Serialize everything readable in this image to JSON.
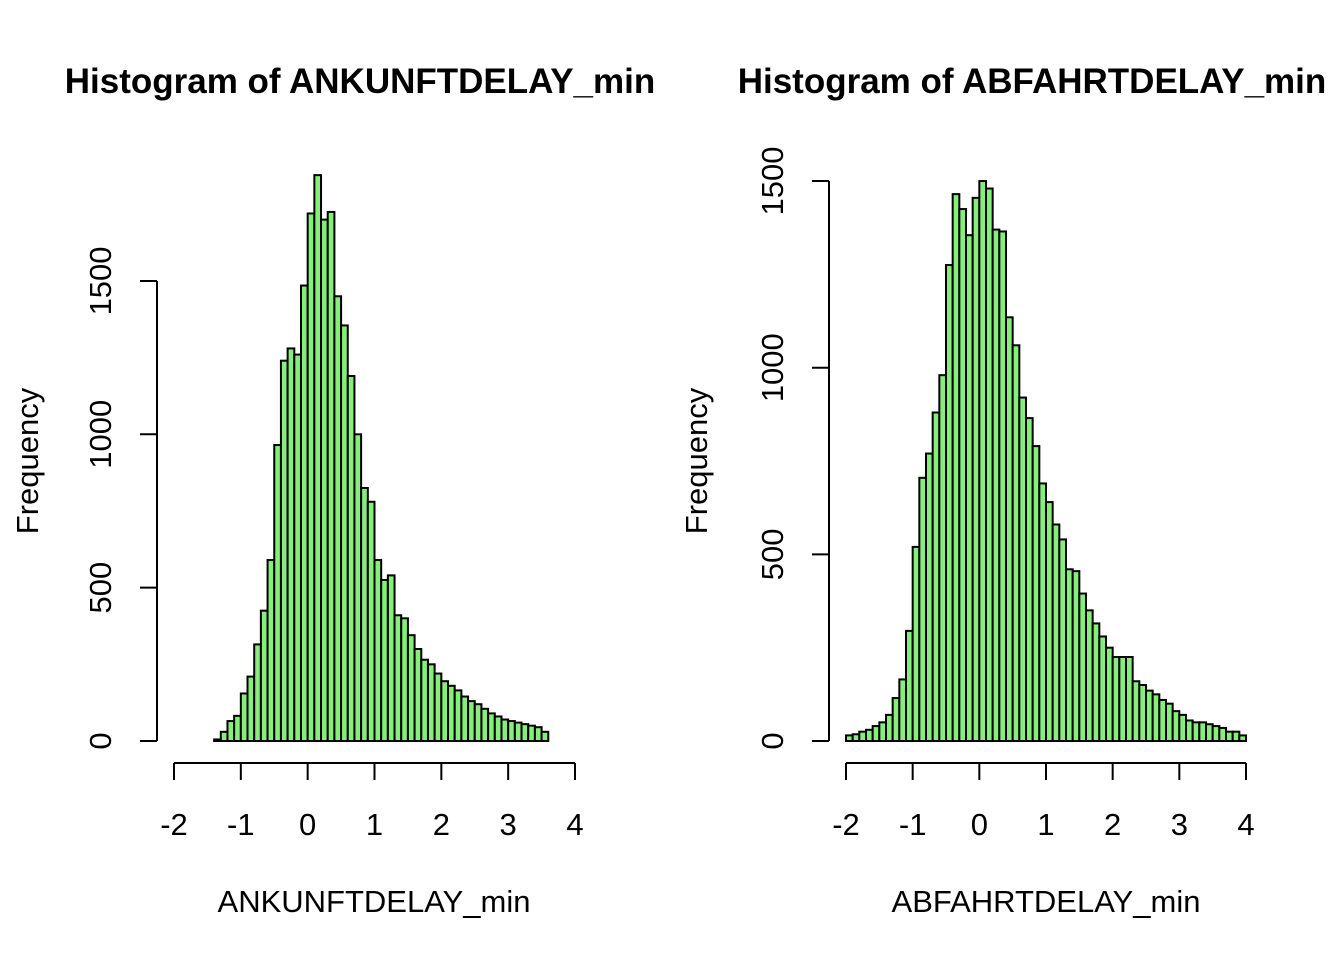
{
  "chart_data": [
    {
      "type": "bar",
      "title": "Histogram of ANKUNFTDELAY_min",
      "xlabel": "ANKUNFTDELAY_min",
      "ylabel": "Frequency",
      "bar_color": "#86ee7a",
      "xlim": [
        -2,
        4
      ],
      "ylim": [
        0,
        1850
      ],
      "x_ticks": [
        -2,
        -1,
        0,
        1,
        2,
        3,
        4
      ],
      "y_ticks": [
        0,
        500,
        1000,
        1500
      ],
      "y_axis_max": 1500,
      "bin_start": -1.4,
      "bin_width": 0.1,
      "values": [
        5,
        30,
        65,
        82,
        155,
        210,
        315,
        425,
        590,
        965,
        1240,
        1280,
        1260,
        1485,
        1720,
        1845,
        1700,
        1725,
        1450,
        1355,
        1190,
        1000,
        825,
        780,
        590,
        525,
        540,
        410,
        400,
        345,
        300,
        265,
        250,
        220,
        195,
        180,
        165,
        145,
        130,
        120,
        105,
        90,
        80,
        70,
        65,
        60,
        55,
        50,
        45,
        30
      ]
    },
    {
      "type": "bar",
      "title": "Histogram of ABFAHRTDELAY_min",
      "xlabel": "ABFAHRTDELAY_min",
      "ylabel": "Frequency",
      "bar_color": "#86ee7a",
      "xlim": [
        -2,
        4
      ],
      "ylim": [
        0,
        1500
      ],
      "x_ticks": [
        -2,
        -1,
        0,
        1,
        2,
        3,
        4
      ],
      "y_ticks": [
        0,
        500,
        1000,
        1500
      ],
      "y_axis_max": 1500,
      "bin_start": -2.0,
      "bin_width": 0.1,
      "values": [
        15,
        18,
        25,
        30,
        40,
        50,
        70,
        115,
        165,
        295,
        520,
        705,
        770,
        880,
        980,
        1275,
        1465,
        1425,
        1355,
        1455,
        1500,
        1480,
        1370,
        1365,
        1135,
        1060,
        920,
        865,
        790,
        690,
        640,
        580,
        540,
        460,
        455,
        395,
        350,
        315,
        280,
        250,
        225,
        225,
        225,
        160,
        150,
        135,
        125,
        110,
        100,
        80,
        70,
        55,
        50,
        50,
        45,
        40,
        35,
        25,
        25,
        15
      ]
    }
  ]
}
